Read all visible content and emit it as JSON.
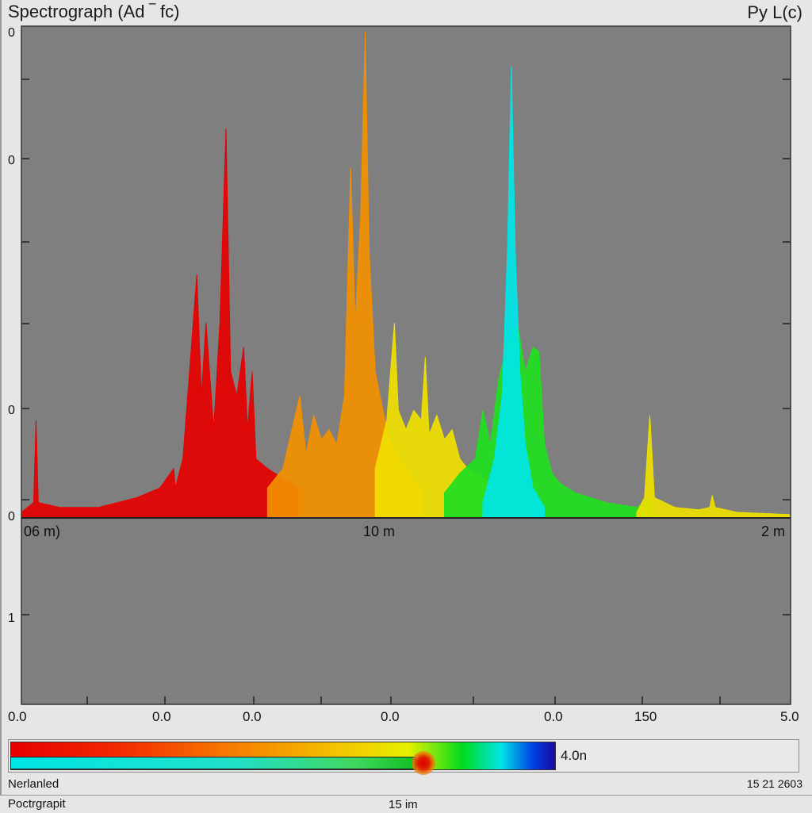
{
  "window": {
    "title": "Spectrograph (Ad  ‾ fc)",
    "title_right": "Py L(c)"
  },
  "upper_axis": {
    "left_tick_labels": [
      "0",
      "0",
      "0",
      "0"
    ],
    "bottom_labels": [
      "06 m)",
      "10 m",
      "2 m"
    ]
  },
  "lower_axis": {
    "left_tick_labels": [
      "1"
    ],
    "bottom_labels": [
      "0.0",
      "0.0",
      "0.0",
      "0.0",
      "0.0",
      "150",
      "5.0"
    ]
  },
  "chart_data": {
    "type": "area",
    "title": "Spectrograph (Ad  ‾ fc)",
    "xlabel": "",
    "ylabel": "",
    "peaks_note": "",
    "x_range": [
      0,
      1
    ],
    "y_range": [
      0,
      1
    ],
    "series": [
      {
        "color": "#e60000",
        "points": [
          [
            0.0,
            0.01
          ],
          [
            0.016,
            0.03
          ],
          [
            0.019,
            0.2
          ],
          [
            0.022,
            0.03
          ],
          [
            0.05,
            0.02
          ],
          [
            0.1,
            0.02
          ],
          [
            0.15,
            0.04
          ],
          [
            0.18,
            0.06
          ],
          [
            0.198,
            0.1
          ],
          [
            0.2,
            0.06
          ],
          [
            0.21,
            0.12
          ],
          [
            0.22,
            0.33
          ],
          [
            0.228,
            0.5
          ],
          [
            0.234,
            0.25
          ],
          [
            0.24,
            0.4
          ],
          [
            0.25,
            0.18
          ],
          [
            0.258,
            0.4
          ],
          [
            0.266,
            0.8
          ],
          [
            0.272,
            0.3
          ],
          [
            0.28,
            0.25
          ],
          [
            0.289,
            0.35
          ],
          [
            0.294,
            0.18
          ],
          [
            0.3,
            0.3
          ],
          [
            0.305,
            0.12
          ],
          [
            0.32,
            0.1
          ],
          [
            0.34,
            0.08
          ],
          [
            0.36,
            0.06
          ]
        ]
      },
      {
        "color": "#f29000",
        "points": [
          [
            0.32,
            0.06
          ],
          [
            0.34,
            0.1
          ],
          [
            0.362,
            0.25
          ],
          [
            0.37,
            0.13
          ],
          [
            0.38,
            0.21
          ],
          [
            0.39,
            0.16
          ],
          [
            0.4,
            0.18
          ],
          [
            0.41,
            0.15
          ],
          [
            0.42,
            0.25
          ],
          [
            0.428,
            0.72
          ],
          [
            0.434,
            0.4
          ],
          [
            0.441,
            0.62
          ],
          [
            0.447,
            1.0
          ],
          [
            0.452,
            0.55
          ],
          [
            0.46,
            0.3
          ],
          [
            0.47,
            0.22
          ],
          [
            0.48,
            0.15
          ],
          [
            0.5,
            0.1
          ],
          [
            0.52,
            0.06
          ]
        ]
      },
      {
        "color": "#f0e000",
        "points": [
          [
            0.46,
            0.1
          ],
          [
            0.475,
            0.2
          ],
          [
            0.485,
            0.4
          ],
          [
            0.49,
            0.22
          ],
          [
            0.5,
            0.18
          ],
          [
            0.51,
            0.22
          ],
          [
            0.52,
            0.2
          ],
          [
            0.525,
            0.33
          ],
          [
            0.53,
            0.17
          ],
          [
            0.54,
            0.21
          ],
          [
            0.55,
            0.16
          ],
          [
            0.56,
            0.18
          ],
          [
            0.57,
            0.12
          ],
          [
            0.58,
            0.1
          ],
          [
            0.6,
            0.08
          ],
          [
            0.62,
            0.06
          ]
        ]
      },
      {
        "color": "#20e020",
        "points": [
          [
            0.55,
            0.05
          ],
          [
            0.57,
            0.09
          ],
          [
            0.59,
            0.12
          ],
          [
            0.6,
            0.22
          ],
          [
            0.61,
            0.15
          ],
          [
            0.62,
            0.28
          ],
          [
            0.635,
            0.38
          ],
          [
            0.645,
            0.4
          ],
          [
            0.655,
            0.3
          ],
          [
            0.665,
            0.35
          ],
          [
            0.673,
            0.34
          ],
          [
            0.68,
            0.15
          ],
          [
            0.69,
            0.09
          ],
          [
            0.7,
            0.07
          ],
          [
            0.72,
            0.05
          ],
          [
            0.74,
            0.04
          ],
          [
            0.76,
            0.03
          ],
          [
            0.8,
            0.02
          ],
          [
            0.82,
            0.04
          ]
        ]
      },
      {
        "color": "#00e6e6",
        "points": [
          [
            0.6,
            0.03
          ],
          [
            0.615,
            0.12
          ],
          [
            0.625,
            0.25
          ],
          [
            0.632,
            0.55
          ],
          [
            0.637,
            0.93
          ],
          [
            0.642,
            0.55
          ],
          [
            0.648,
            0.3
          ],
          [
            0.655,
            0.15
          ],
          [
            0.665,
            0.06
          ],
          [
            0.68,
            0.02
          ]
        ]
      },
      {
        "color": "#eee000",
        "points": [
          [
            0.8,
            0.01
          ],
          [
            0.81,
            0.04
          ],
          [
            0.817,
            0.21
          ],
          [
            0.823,
            0.04
          ],
          [
            0.85,
            0.02
          ],
          [
            0.88,
            0.015
          ],
          [
            0.895,
            0.02
          ],
          [
            0.898,
            0.045
          ],
          [
            0.902,
            0.02
          ],
          [
            0.93,
            0.01
          ],
          [
            1.0,
            0.005
          ]
        ]
      }
    ]
  },
  "colorbar": {
    "value_label": "4.0n"
  },
  "status": {
    "left": "Nerlanled",
    "right": "15 21 2603"
  },
  "footer": {
    "left": "Poctrgrapit",
    "center": "15 im"
  }
}
